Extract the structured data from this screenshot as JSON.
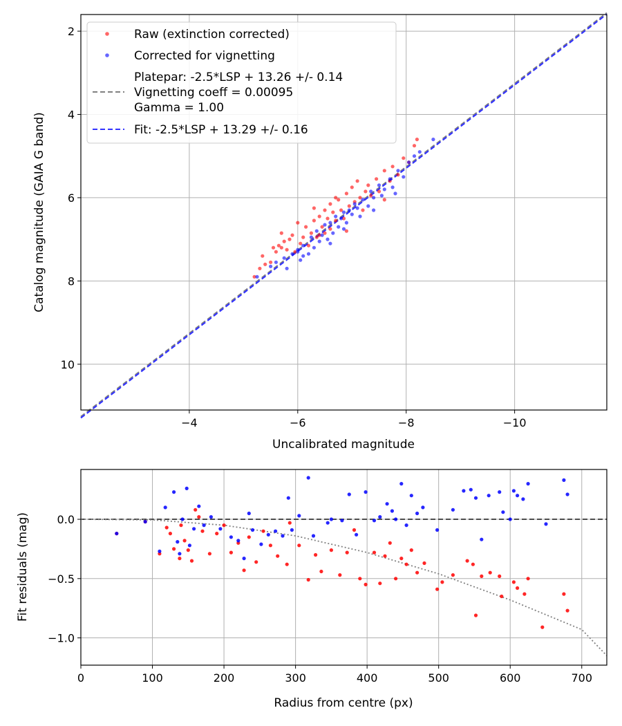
{
  "chart_data": [
    {
      "type": "scatter",
      "xlabel": "Uncalibrated magnitude",
      "ylabel": "Catalog magnitude (GAIA G band)",
      "xlim": [
        -2.0,
        -11.7
      ],
      "ylim": [
        11.1,
        1.6
      ],
      "xticks": [
        -4,
        -6,
        -8,
        -10
      ],
      "xtick_labels": [
        "−4",
        "−6",
        "−8",
        "−10"
      ],
      "yticks": [
        2,
        4,
        6,
        8,
        10
      ],
      "ytick_labels": [
        "2",
        "4",
        "6",
        "8",
        "10"
      ],
      "grid": true,
      "legend_position": "upper-left",
      "legend": [
        {
          "kind": "marker",
          "color": "#ff0000",
          "lines": [
            "Raw (extinction corrected)"
          ]
        },
        {
          "kind": "marker",
          "color": "#0000ff",
          "lines": [
            "Corrected for vignetting"
          ]
        },
        {
          "kind": "line",
          "color": "#808080",
          "lines": [
            "Platepar: -2.5*LSP + 13.26 +/- 0.14",
            "Vignetting coeff = 0.00095",
            "Gamma = 1.00"
          ]
        },
        {
          "kind": "line",
          "color": "#3333ff",
          "lines": [
            "Fit: -2.5*LSP + 13.29 +/- 0.16"
          ]
        }
      ],
      "lines": [
        {
          "name": "Platepar",
          "color": "#808080",
          "x": [
            -2.0,
            -11.7
          ],
          "y": [
            11.26,
            1.56
          ]
        },
        {
          "name": "Fit",
          "color": "#3333ff",
          "x": [
            -2.0,
            -11.7
          ],
          "y": [
            11.29,
            1.59
          ]
        }
      ],
      "series": [
        {
          "name": "Raw (extinction corrected)",
          "color": "#ff0000",
          "points": [
            [
              -5.2,
              7.9
            ],
            [
              -5.3,
              7.7
            ],
            [
              -5.4,
              7.6
            ],
            [
              -5.35,
              7.4
            ],
            [
              -5.5,
              7.55
            ],
            [
              -5.6,
              7.3
            ],
            [
              -5.65,
              7.15
            ],
            [
              -5.7,
              7.2
            ],
            [
              -5.7,
              6.85
            ],
            [
              -5.75,
              7.05
            ],
            [
              -5.8,
              7.25
            ],
            [
              -5.85,
              7.0
            ],
            [
              -5.9,
              6.9
            ],
            [
              -5.95,
              7.3
            ],
            [
              -6.0,
              6.6
            ],
            [
              -6.05,
              7.1
            ],
            [
              -6.1,
              6.95
            ],
            [
              -6.15,
              6.7
            ],
            [
              -6.2,
              7.15
            ],
            [
              -6.25,
              6.85
            ],
            [
              -6.3,
              6.55
            ],
            [
              -6.3,
              6.25
            ],
            [
              -6.35,
              6.95
            ],
            [
              -6.4,
              6.45
            ],
            [
              -6.45,
              6.7
            ],
            [
              -6.5,
              6.3
            ],
            [
              -6.5,
              6.85
            ],
            [
              -6.55,
              6.5
            ],
            [
              -6.6,
              6.15
            ],
            [
              -6.6,
              6.75
            ],
            [
              -6.65,
              6.35
            ],
            [
              -6.7,
              6.55
            ],
            [
              -6.75,
              6.05
            ],
            [
              -6.8,
              6.3
            ],
            [
              -6.85,
              6.5
            ],
            [
              -6.9,
              5.9
            ],
            [
              -6.95,
              6.2
            ],
            [
              -7.0,
              5.75
            ],
            [
              -7.05,
              6.1
            ],
            [
              -7.1,
              5.6
            ],
            [
              -7.15,
              6.0
            ],
            [
              -7.2,
              6.3
            ],
            [
              -7.25,
              5.85
            ],
            [
              -7.3,
              5.7
            ],
            [
              -7.35,
              5.95
            ],
            [
              -7.45,
              5.55
            ],
            [
              -7.5,
              5.85
            ],
            [
              -7.6,
              5.35
            ],
            [
              -7.7,
              5.6
            ],
            [
              -7.75,
              5.25
            ],
            [
              -7.85,
              5.45
            ],
            [
              -7.95,
              5.05
            ],
            [
              -8.05,
              5.15
            ],
            [
              -8.15,
              4.75
            ],
            [
              -8.2,
              4.6
            ],
            [
              -7.6,
              6.05
            ],
            [
              -6.9,
              6.8
            ],
            [
              -6.4,
              6.9
            ],
            [
              -5.55,
              7.2
            ],
            [
              -6.7,
              6.0
            ]
          ]
        },
        {
          "name": "Corrected for vignetting",
          "color": "#0000ff",
          "points": [
            [
              -5.25,
              7.9
            ],
            [
              -5.5,
              7.65
            ],
            [
              -5.6,
              7.55
            ],
            [
              -5.75,
              7.45
            ],
            [
              -5.8,
              7.7
            ],
            [
              -5.9,
              7.35
            ],
            [
              -6.0,
              7.25
            ],
            [
              -6.05,
              7.5
            ],
            [
              -6.1,
              7.15
            ],
            [
              -6.2,
              7.35
            ],
            [
              -6.25,
              6.95
            ],
            [
              -6.3,
              7.2
            ],
            [
              -6.35,
              6.8
            ],
            [
              -6.4,
              7.05
            ],
            [
              -6.45,
              6.9
            ],
            [
              -6.5,
              6.65
            ],
            [
              -6.55,
              7.0
            ],
            [
              -6.6,
              6.6
            ],
            [
              -6.65,
              6.85
            ],
            [
              -6.7,
              6.45
            ],
            [
              -6.75,
              6.7
            ],
            [
              -6.8,
              6.5
            ],
            [
              -6.85,
              6.35
            ],
            [
              -6.9,
              6.6
            ],
            [
              -6.95,
              6.3
            ],
            [
              -7.0,
              6.4
            ],
            [
              -7.05,
              6.15
            ],
            [
              -7.1,
              6.25
            ],
            [
              -7.15,
              6.45
            ],
            [
              -7.2,
              6.05
            ],
            [
              -7.3,
              6.2
            ],
            [
              -7.35,
              5.85
            ],
            [
              -7.4,
              6.0
            ],
            [
              -7.5,
              5.7
            ],
            [
              -7.6,
              5.8
            ],
            [
              -7.7,
              5.55
            ],
            [
              -7.75,
              5.75
            ],
            [
              -7.85,
              5.35
            ],
            [
              -7.95,
              5.5
            ],
            [
              -8.05,
              5.15
            ],
            [
              -8.15,
              5.0
            ],
            [
              -8.25,
              4.9
            ],
            [
              -8.5,
              4.6
            ],
            [
              -6.1,
              7.4
            ],
            [
              -6.6,
              7.1
            ],
            [
              -7.4,
              6.3
            ],
            [
              -7.8,
              5.9
            ],
            [
              -6.0,
              7.3
            ],
            [
              -6.85,
              6.75
            ],
            [
              -7.55,
              5.95
            ]
          ]
        }
      ]
    },
    {
      "type": "scatter",
      "xlabel": "Radius from centre (px)",
      "ylabel": "Fit residuals (mag)",
      "xlim": [
        0,
        735
      ],
      "ylim": [
        -1.23,
        0.42
      ],
      "xticks": [
        0,
        100,
        200,
        300,
        400,
        500,
        600,
        700
      ],
      "xtick_labels": [
        "0",
        "100",
        "200",
        "300",
        "400",
        "500",
        "600",
        "700"
      ],
      "yticks": [
        0.0,
        -0.5,
        -1.0
      ],
      "ytick_labels": [
        "0.0",
        "−0.5",
        "−1.0"
      ],
      "grid": true,
      "lines": [
        {
          "name": "zero",
          "color": "#333333",
          "dash": "dashed",
          "x": [
            0,
            735
          ],
          "y": [
            0,
            0
          ]
        },
        {
          "name": "vignetting model",
          "color": "#808080",
          "dash": "dotted",
          "x": [
            0,
            100,
            200,
            300,
            400,
            500,
            600,
            700,
            735
          ],
          "y": [
            0,
            -0.005,
            -0.05,
            -0.14,
            -0.28,
            -0.46,
            -0.68,
            -0.93,
            -1.15
          ]
        }
      ],
      "series": [
        {
          "name": "Raw (extinction corrected)",
          "color": "#ff0000",
          "points": [
            [
              50,
              -0.12
            ],
            [
              90,
              -0.02
            ],
            [
              110,
              -0.29
            ],
            [
              120,
              -0.07
            ],
            [
              125,
              -0.12
            ],
            [
              130,
              -0.25
            ],
            [
              138,
              -0.33
            ],
            [
              140,
              -0.05
            ],
            [
              145,
              -0.18
            ],
            [
              150,
              -0.26
            ],
            [
              155,
              -0.35
            ],
            [
              160,
              0.08
            ],
            [
              165,
              0.02
            ],
            [
              170,
              -0.1
            ],
            [
              180,
              -0.29
            ],
            [
              190,
              -0.12
            ],
            [
              200,
              -0.05
            ],
            [
              210,
              -0.28
            ],
            [
              220,
              -0.2
            ],
            [
              228,
              -0.43
            ],
            [
              235,
              -0.15
            ],
            [
              245,
              -0.36
            ],
            [
              255,
              -0.1
            ],
            [
              265,
              -0.22
            ],
            [
              275,
              -0.31
            ],
            [
              288,
              -0.38
            ],
            [
              292,
              -0.03
            ],
            [
              305,
              -0.22
            ],
            [
              318,
              -0.51
            ],
            [
              328,
              -0.3
            ],
            [
              336,
              -0.44
            ],
            [
              350,
              -0.26
            ],
            [
              362,
              -0.47
            ],
            [
              372,
              -0.28
            ],
            [
              382,
              -0.09
            ],
            [
              390,
              -0.5
            ],
            [
              398,
              -0.55
            ],
            [
              410,
              -0.28
            ],
            [
              418,
              -0.54
            ],
            [
              425,
              -0.31
            ],
            [
              432,
              -0.2
            ],
            [
              440,
              -0.5
            ],
            [
              448,
              -0.33
            ],
            [
              455,
              -0.38
            ],
            [
              462,
              -0.26
            ],
            [
              470,
              -0.45
            ],
            [
              480,
              -0.37
            ],
            [
              498,
              -0.59
            ],
            [
              505,
              -0.53
            ],
            [
              520,
              -0.47
            ],
            [
              540,
              -0.35
            ],
            [
              548,
              -0.38
            ],
            [
              552,
              -0.81
            ],
            [
              560,
              -0.48
            ],
            [
              572,
              -0.45
            ],
            [
              585,
              -0.48
            ],
            [
              588,
              -0.65
            ],
            [
              605,
              -0.53
            ],
            [
              610,
              -0.58
            ],
            [
              620,
              -0.63
            ],
            [
              625,
              -0.5
            ],
            [
              645,
              -0.91
            ],
            [
              675,
              -0.63
            ],
            [
              680,
              -0.77
            ]
          ]
        },
        {
          "name": "Corrected for vignetting",
          "color": "#0000ff",
          "points": [
            [
              50,
              -0.12
            ],
            [
              90,
              -0.02
            ],
            [
              110,
              -0.27
            ],
            [
              118,
              0.1
            ],
            [
              130,
              0.23
            ],
            [
              135,
              -0.19
            ],
            [
              138,
              -0.29
            ],
            [
              142,
              0.0
            ],
            [
              148,
              0.26
            ],
            [
              152,
              -0.22
            ],
            [
              158,
              -0.08
            ],
            [
              165,
              0.11
            ],
            [
              172,
              -0.05
            ],
            [
              182,
              0.02
            ],
            [
              195,
              -0.08
            ],
            [
              210,
              -0.15
            ],
            [
              220,
              -0.18
            ],
            [
              228,
              -0.33
            ],
            [
              235,
              0.05
            ],
            [
              240,
              -0.09
            ],
            [
              252,
              -0.21
            ],
            [
              262,
              -0.13
            ],
            [
              272,
              -0.1
            ],
            [
              282,
              -0.14
            ],
            [
              290,
              0.18
            ],
            [
              295,
              -0.09
            ],
            [
              305,
              0.03
            ],
            [
              318,
              0.35
            ],
            [
              325,
              -0.14
            ],
            [
              345,
              -0.03
            ],
            [
              350,
              0.0
            ],
            [
              365,
              -0.01
            ],
            [
              375,
              0.21
            ],
            [
              385,
              -0.13
            ],
            [
              398,
              0.23
            ],
            [
              410,
              -0.01
            ],
            [
              418,
              0.02
            ],
            [
              428,
              0.13
            ],
            [
              435,
              0.07
            ],
            [
              440,
              0.0
            ],
            [
              448,
              0.3
            ],
            [
              455,
              -0.05
            ],
            [
              462,
              0.2
            ],
            [
              470,
              0.05
            ],
            [
              478,
              0.1
            ],
            [
              498,
              -0.09
            ],
            [
              520,
              0.08
            ],
            [
              535,
              0.24
            ],
            [
              545,
              0.25
            ],
            [
              552,
              0.18
            ],
            [
              560,
              -0.17
            ],
            [
              570,
              0.2
            ],
            [
              585,
              0.23
            ],
            [
              590,
              0.06
            ],
            [
              600,
              0.0
            ],
            [
              605,
              0.24
            ],
            [
              610,
              0.2
            ],
            [
              618,
              0.17
            ],
            [
              625,
              0.3
            ],
            [
              650,
              -0.04
            ],
            [
              675,
              0.33
            ],
            [
              680,
              0.21
            ]
          ]
        }
      ]
    }
  ]
}
